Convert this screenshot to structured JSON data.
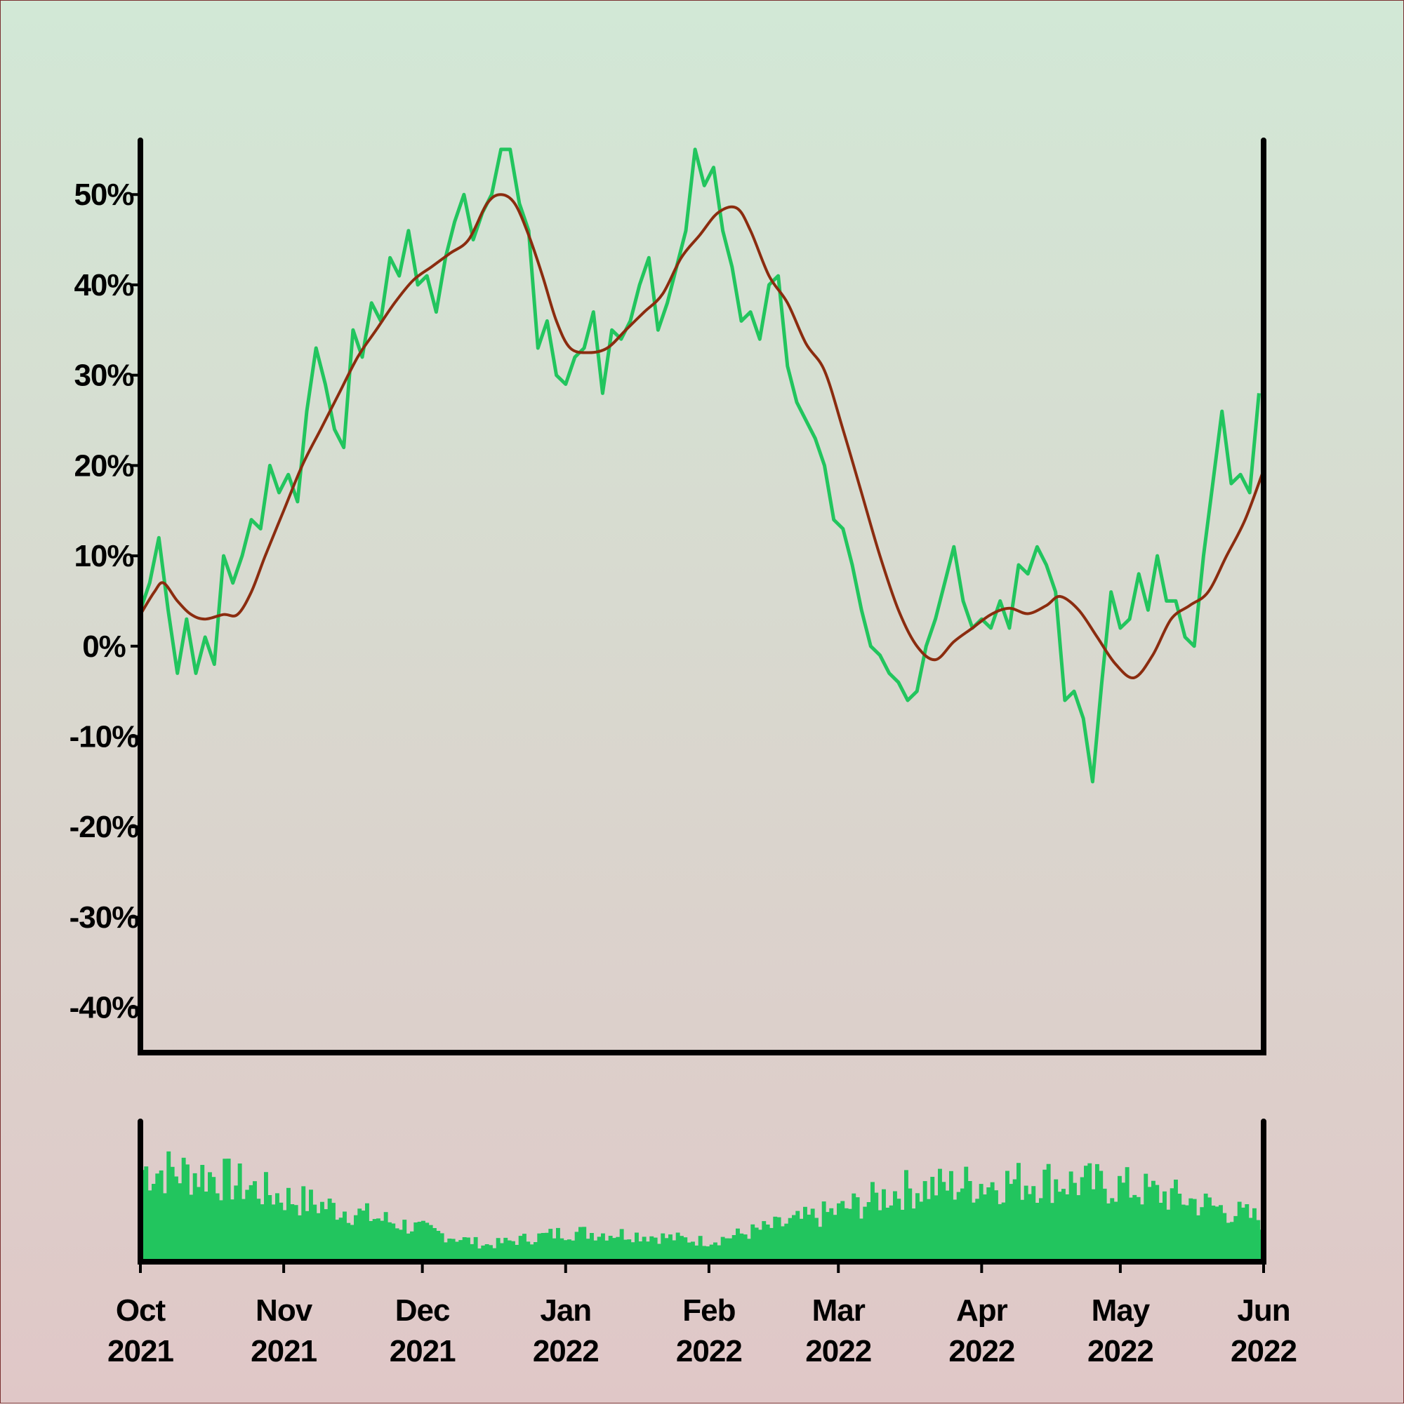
{
  "colors": {
    "background_top": "#d2e8d6",
    "background_bottom": "#e0c7c7",
    "price_line": "#22c55e",
    "moving_average": "#8b2c0f",
    "volume_bars": "#22c55e",
    "axes": "#000000"
  },
  "chart_data": [
    {
      "type": "line",
      "title": "",
      "xlabel": "",
      "ylabel": "",
      "grid": false,
      "legend": "none",
      "x_range": [
        "2021-10-01",
        "2022-06-01"
      ],
      "ylim": [
        -45,
        56
      ],
      "y_ticks": [
        {
          "value": 50,
          "label": "50%"
        },
        {
          "value": 40,
          "label": "40%"
        },
        {
          "value": 30,
          "label": "30%"
        },
        {
          "value": 20,
          "label": "20%"
        },
        {
          "value": 10,
          "label": "10%"
        },
        {
          "value": 0,
          "label": "0%"
        },
        {
          "value": -10,
          "label": "-10%"
        },
        {
          "value": -20,
          "label": "-20%"
        },
        {
          "value": -30,
          "label": "-30%"
        },
        {
          "value": -40,
          "label": "-40%"
        }
      ],
      "x_ticks": [
        {
          "date": "2021-10-01",
          "month": "Oct",
          "year": "2021"
        },
        {
          "date": "2021-11-01",
          "month": "Nov",
          "year": "2021"
        },
        {
          "date": "2021-12-01",
          "month": "Dec",
          "year": "2021"
        },
        {
          "date": "2022-01-01",
          "month": "Jan",
          "year": "2022"
        },
        {
          "date": "2022-02-01",
          "month": "Feb",
          "year": "2022"
        },
        {
          "date": "2022-03-01",
          "month": "Mar",
          "year": "2022"
        },
        {
          "date": "2022-04-01",
          "month": "Apr",
          "year": "2022"
        },
        {
          "date": "2022-05-01",
          "month": "May",
          "year": "2022"
        },
        {
          "date": "2022-06-01",
          "month": "Jun",
          "year": "2022"
        }
      ],
      "series": [
        {
          "kind": "price",
          "points": [
            [
              "2021-10-01",
              4
            ],
            [
              "2021-10-03",
              7
            ],
            [
              "2021-10-05",
              12
            ],
            [
              "2021-10-07",
              4
            ],
            [
              "2021-10-09",
              -3
            ],
            [
              "2021-10-11",
              3
            ],
            [
              "2021-10-13",
              -3
            ],
            [
              "2021-10-15",
              1
            ],
            [
              "2021-10-17",
              -2
            ],
            [
              "2021-10-19",
              10
            ],
            [
              "2021-10-21",
              7
            ],
            [
              "2021-10-23",
              10
            ],
            [
              "2021-10-25",
              14
            ],
            [
              "2021-10-27",
              13
            ],
            [
              "2021-10-29",
              20
            ],
            [
              "2021-10-31",
              17
            ],
            [
              "2021-11-02",
              19
            ],
            [
              "2021-11-04",
              16
            ],
            [
              "2021-11-06",
              26
            ],
            [
              "2021-11-08",
              33
            ],
            [
              "2021-11-10",
              29
            ],
            [
              "2021-11-12",
              24
            ],
            [
              "2021-11-14",
              22
            ],
            [
              "2021-11-16",
              35
            ],
            [
              "2021-11-18",
              32
            ],
            [
              "2021-11-20",
              38
            ],
            [
              "2021-11-22",
              36
            ],
            [
              "2021-11-24",
              43
            ],
            [
              "2021-11-26",
              41
            ],
            [
              "2021-11-28",
              46
            ],
            [
              "2021-11-30",
              40
            ],
            [
              "2021-12-02",
              41
            ],
            [
              "2021-12-04",
              37
            ],
            [
              "2021-12-06",
              43
            ],
            [
              "2021-12-08",
              47
            ],
            [
              "2021-12-10",
              50
            ],
            [
              "2021-12-12",
              45
            ],
            [
              "2021-12-14",
              48
            ],
            [
              "2021-12-16",
              50
            ],
            [
              "2021-12-18",
              55
            ],
            [
              "2021-12-20",
              55
            ],
            [
              "2021-12-22",
              49
            ],
            [
              "2021-12-24",
              46
            ],
            [
              "2021-12-26",
              33
            ],
            [
              "2021-12-28",
              36
            ],
            [
              "2021-12-30",
              30
            ],
            [
              "2022-01-01",
              29
            ],
            [
              "2022-01-03",
              32
            ],
            [
              "2022-01-05",
              33
            ],
            [
              "2022-01-07",
              37
            ],
            [
              "2022-01-09",
              28
            ],
            [
              "2022-01-11",
              35
            ],
            [
              "2022-01-13",
              34
            ],
            [
              "2022-01-15",
              36
            ],
            [
              "2022-01-17",
              40
            ],
            [
              "2022-01-19",
              43
            ],
            [
              "2022-01-21",
              35
            ],
            [
              "2022-01-23",
              38
            ],
            [
              "2022-01-25",
              42
            ],
            [
              "2022-01-27",
              46
            ],
            [
              "2022-01-29",
              55
            ],
            [
              "2022-01-31",
              51
            ],
            [
              "2022-02-02",
              53
            ],
            [
              "2022-02-04",
              46
            ],
            [
              "2022-02-06",
              42
            ],
            [
              "2022-02-08",
              36
            ],
            [
              "2022-02-10",
              37
            ],
            [
              "2022-02-12",
              34
            ],
            [
              "2022-02-14",
              40
            ],
            [
              "2022-02-16",
              41
            ],
            [
              "2022-02-18",
              31
            ],
            [
              "2022-02-20",
              27
            ],
            [
              "2022-02-22",
              25
            ],
            [
              "2022-02-24",
              23
            ],
            [
              "2022-02-26",
              20
            ],
            [
              "2022-02-28",
              14
            ],
            [
              "2022-03-02",
              13
            ],
            [
              "2022-03-04",
              9
            ],
            [
              "2022-03-06",
              4
            ],
            [
              "2022-03-08",
              0
            ],
            [
              "2022-03-10",
              -1
            ],
            [
              "2022-03-12",
              -3
            ],
            [
              "2022-03-14",
              -4
            ],
            [
              "2022-03-16",
              -6
            ],
            [
              "2022-03-18",
              -5
            ],
            [
              "2022-03-20",
              0
            ],
            [
              "2022-03-22",
              3
            ],
            [
              "2022-03-24",
              7
            ],
            [
              "2022-03-26",
              11
            ],
            [
              "2022-03-28",
              5
            ],
            [
              "2022-03-30",
              2
            ],
            [
              "2022-04-01",
              3
            ],
            [
              "2022-04-03",
              2
            ],
            [
              "2022-04-05",
              5
            ],
            [
              "2022-04-07",
              2
            ],
            [
              "2022-04-09",
              9
            ],
            [
              "2022-04-11",
              8
            ],
            [
              "2022-04-13",
              11
            ],
            [
              "2022-04-15",
              9
            ],
            [
              "2022-04-17",
              6
            ],
            [
              "2022-04-19",
              -6
            ],
            [
              "2022-04-21",
              -5
            ],
            [
              "2022-04-23",
              -8
            ],
            [
              "2022-04-25",
              -15
            ],
            [
              "2022-04-27",
              -4
            ],
            [
              "2022-04-29",
              6
            ],
            [
              "2022-05-01",
              2
            ],
            [
              "2022-05-03",
              3
            ],
            [
              "2022-05-05",
              8
            ],
            [
              "2022-05-07",
              4
            ],
            [
              "2022-05-09",
              10
            ],
            [
              "2022-05-11",
              5
            ],
            [
              "2022-05-13",
              5
            ],
            [
              "2022-05-15",
              1
            ],
            [
              "2022-05-17",
              0
            ],
            [
              "2022-05-19",
              10
            ],
            [
              "2022-05-21",
              18
            ],
            [
              "2022-05-23",
              26
            ],
            [
              "2022-05-25",
              18
            ],
            [
              "2022-05-27",
              19
            ],
            [
              "2022-05-29",
              17
            ],
            [
              "2022-05-31",
              28
            ]
          ]
        },
        {
          "kind": "moving-average",
          "points": [
            [
              "2021-10-01",
              3.5
            ],
            [
              "2021-10-04",
              6
            ],
            [
              "2021-10-06",
              7
            ],
            [
              "2021-10-09",
              5
            ],
            [
              "2021-10-12",
              3.5
            ],
            [
              "2021-10-15",
              3
            ],
            [
              "2021-10-19",
              3.5
            ],
            [
              "2021-10-22",
              3.5
            ],
            [
              "2021-10-25",
              6
            ],
            [
              "2021-10-28",
              10
            ],
            [
              "2021-11-01",
              15
            ],
            [
              "2021-11-05",
              20
            ],
            [
              "2021-11-09",
              24
            ],
            [
              "2021-11-13",
              28
            ],
            [
              "2021-11-17",
              32
            ],
            [
              "2021-11-21",
              35
            ],
            [
              "2021-11-25",
              38
            ],
            [
              "2021-11-29",
              40.5
            ],
            [
              "2021-12-03",
              42
            ],
            [
              "2021-12-07",
              43.5
            ],
            [
              "2021-12-11",
              45
            ],
            [
              "2021-12-15",
              49
            ],
            [
              "2021-12-18",
              50
            ],
            [
              "2021-12-21",
              49
            ],
            [
              "2021-12-24",
              45.5
            ],
            [
              "2021-12-27",
              41
            ],
            [
              "2021-12-30",
              36
            ],
            [
              "2022-01-02",
              33
            ],
            [
              "2022-01-06",
              32.5
            ],
            [
              "2022-01-10",
              33
            ],
            [
              "2022-01-14",
              35
            ],
            [
              "2022-01-18",
              37
            ],
            [
              "2022-01-22",
              39
            ],
            [
              "2022-01-26",
              43
            ],
            [
              "2022-01-30",
              45.5
            ],
            [
              "2022-02-03",
              48
            ],
            [
              "2022-02-07",
              48.5
            ],
            [
              "2022-02-10",
              46
            ],
            [
              "2022-02-14",
              41
            ],
            [
              "2022-02-18",
              38
            ],
            [
              "2022-02-22",
              33.5
            ],
            [
              "2022-02-26",
              30.5
            ],
            [
              "2022-03-02",
              24
            ],
            [
              "2022-03-06",
              17
            ],
            [
              "2022-03-10",
              10
            ],
            [
              "2022-03-14",
              4
            ],
            [
              "2022-03-18",
              0
            ],
            [
              "2022-03-22",
              -1.5
            ],
            [
              "2022-03-26",
              0.5
            ],
            [
              "2022-03-30",
              2
            ],
            [
              "2022-04-03",
              3.5
            ],
            [
              "2022-04-07",
              4.2
            ],
            [
              "2022-04-11",
              3.6
            ],
            [
              "2022-04-15",
              4.5
            ],
            [
              "2022-04-18",
              5.5
            ],
            [
              "2022-04-22",
              4
            ],
            [
              "2022-04-26",
              1
            ],
            [
              "2022-04-30",
              -2
            ],
            [
              "2022-05-04",
              -3.5
            ],
            [
              "2022-05-08",
              -1
            ],
            [
              "2022-05-12",
              3
            ],
            [
              "2022-05-16",
              4.5
            ],
            [
              "2022-05-20",
              6
            ],
            [
              "2022-05-24",
              10
            ],
            [
              "2022-05-28",
              14
            ],
            [
              "2022-06-01",
              19.5
            ]
          ]
        }
      ]
    },
    {
      "type": "bar",
      "title": "",
      "x_range": [
        "2021-10-01",
        "2022-06-01"
      ],
      "axis_labels_shown": false,
      "volume_envelope": [
        [
          "2021-10-01",
          1.0
        ],
        [
          "2021-10-15",
          0.95
        ],
        [
          "2021-11-01",
          0.7
        ],
        [
          "2021-11-15",
          0.55
        ],
        [
          "2021-12-01",
          0.35
        ],
        [
          "2021-12-15",
          0.18
        ],
        [
          "2022-01-01",
          0.32
        ],
        [
          "2022-01-15",
          0.3
        ],
        [
          "2022-02-01",
          0.22
        ],
        [
          "2022-02-15",
          0.38
        ],
        [
          "2022-03-01",
          0.55
        ],
        [
          "2022-03-15",
          0.78
        ],
        [
          "2022-04-01",
          0.85
        ],
        [
          "2022-04-15",
          0.88
        ],
        [
          "2022-05-01",
          0.82
        ],
        [
          "2022-05-15",
          0.68
        ],
        [
          "2022-06-01",
          0.45
        ]
      ]
    }
  ]
}
